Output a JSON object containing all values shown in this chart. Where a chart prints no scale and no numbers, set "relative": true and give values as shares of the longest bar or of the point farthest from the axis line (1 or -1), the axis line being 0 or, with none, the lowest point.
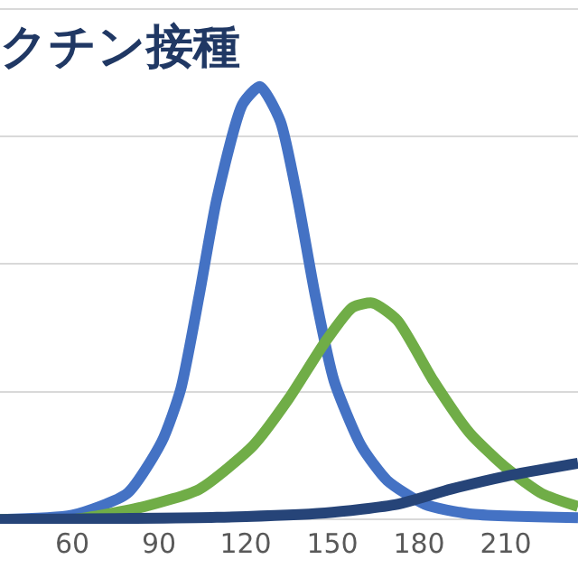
{
  "chart_data": {
    "type": "line",
    "title": "クチン接種",
    "relative": true,
    "xlim": [
      35,
      235
    ],
    "xticks": [
      60,
      90,
      120,
      150,
      180,
      210
    ],
    "grid": "y",
    "marker": "none",
    "line_style": "solid",
    "series": [
      {
        "color": "#4472c4",
        "x": [
          35,
          60,
          79,
          91,
          97.5,
          104,
          110,
          119,
          125,
          132,
          138,
          144,
          150.6,
          160,
          169,
          182,
          197.5,
          235
        ],
        "values": [
          0,
          0.01,
          0.06,
          0.18,
          0.3,
          0.52,
          0.74,
          0.96,
          1,
          0.92,
          0.74,
          0.52,
          0.32,
          0.17,
          0.09,
          0.035,
          0.013,
          0.004
        ]
      },
      {
        "color": "#70ad47",
        "x": [
          35,
          60,
          85,
          104,
          122.5,
          135,
          147.5,
          157,
          164,
          172.5,
          185,
          197.5,
          210,
          222.5,
          235
        ],
        "values": [
          0,
          0,
          0.03,
          0.07,
          0.17,
          0.28,
          0.41,
          0.49,
          0.5,
          0.46,
          0.32,
          0.2,
          0.12,
          0.06,
          0.03
        ]
      },
      {
        "color": "#264478",
        "x": [
          35,
          110,
          147.5,
          172.5,
          191,
          210,
          235
        ],
        "values": [
          0,
          0.005,
          0.015,
          0.035,
          0.07,
          0.1,
          0.13
        ]
      }
    ]
  }
}
